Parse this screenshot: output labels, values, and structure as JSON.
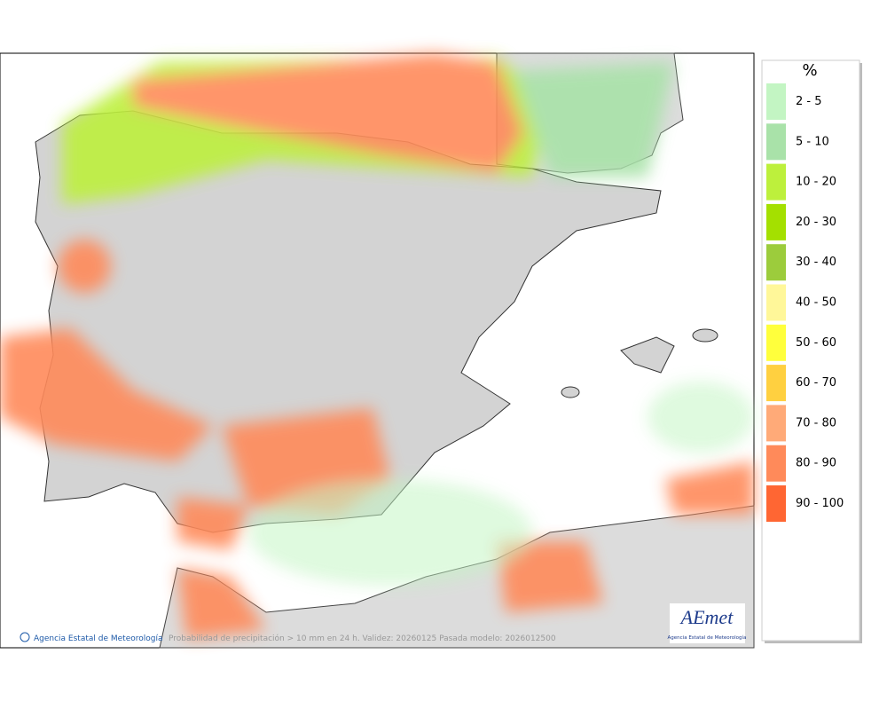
{
  "legend": {
    "title": "%",
    "items": [
      {
        "label": "2 - 5",
        "color": "#c3f5c3"
      },
      {
        "label": "5 - 10",
        "color": "#a9e2a9"
      },
      {
        "label": "10 - 20",
        "color": "#bdf03c"
      },
      {
        "label": "20 - 30",
        "color": "#a4e000"
      },
      {
        "label": "30 - 40",
        "color": "#9ccc3c"
      },
      {
        "label": "40 - 50",
        "color": "#fff799"
      },
      {
        "label": "50 - 60",
        "color": "#ffff3c"
      },
      {
        "label": "60 - 70",
        "color": "#ffd040"
      },
      {
        "label": "70 - 80",
        "color": "#ffaa78"
      },
      {
        "label": "80 - 90",
        "color": "#ff8a5a"
      },
      {
        "label": "90 - 100",
        "color": "#ff6633"
      }
    ]
  },
  "footer": {
    "credit": "Agencia Estatal de Meteorología",
    "caption": "Probabilidad de precipitación > 10 mm en 24 h. Validez: 20260125 Pasada modelo: 2026012500"
  },
  "logo": {
    "name": "AEmet",
    "subtitle": "Agencia Estatal de Meteorología"
  }
}
